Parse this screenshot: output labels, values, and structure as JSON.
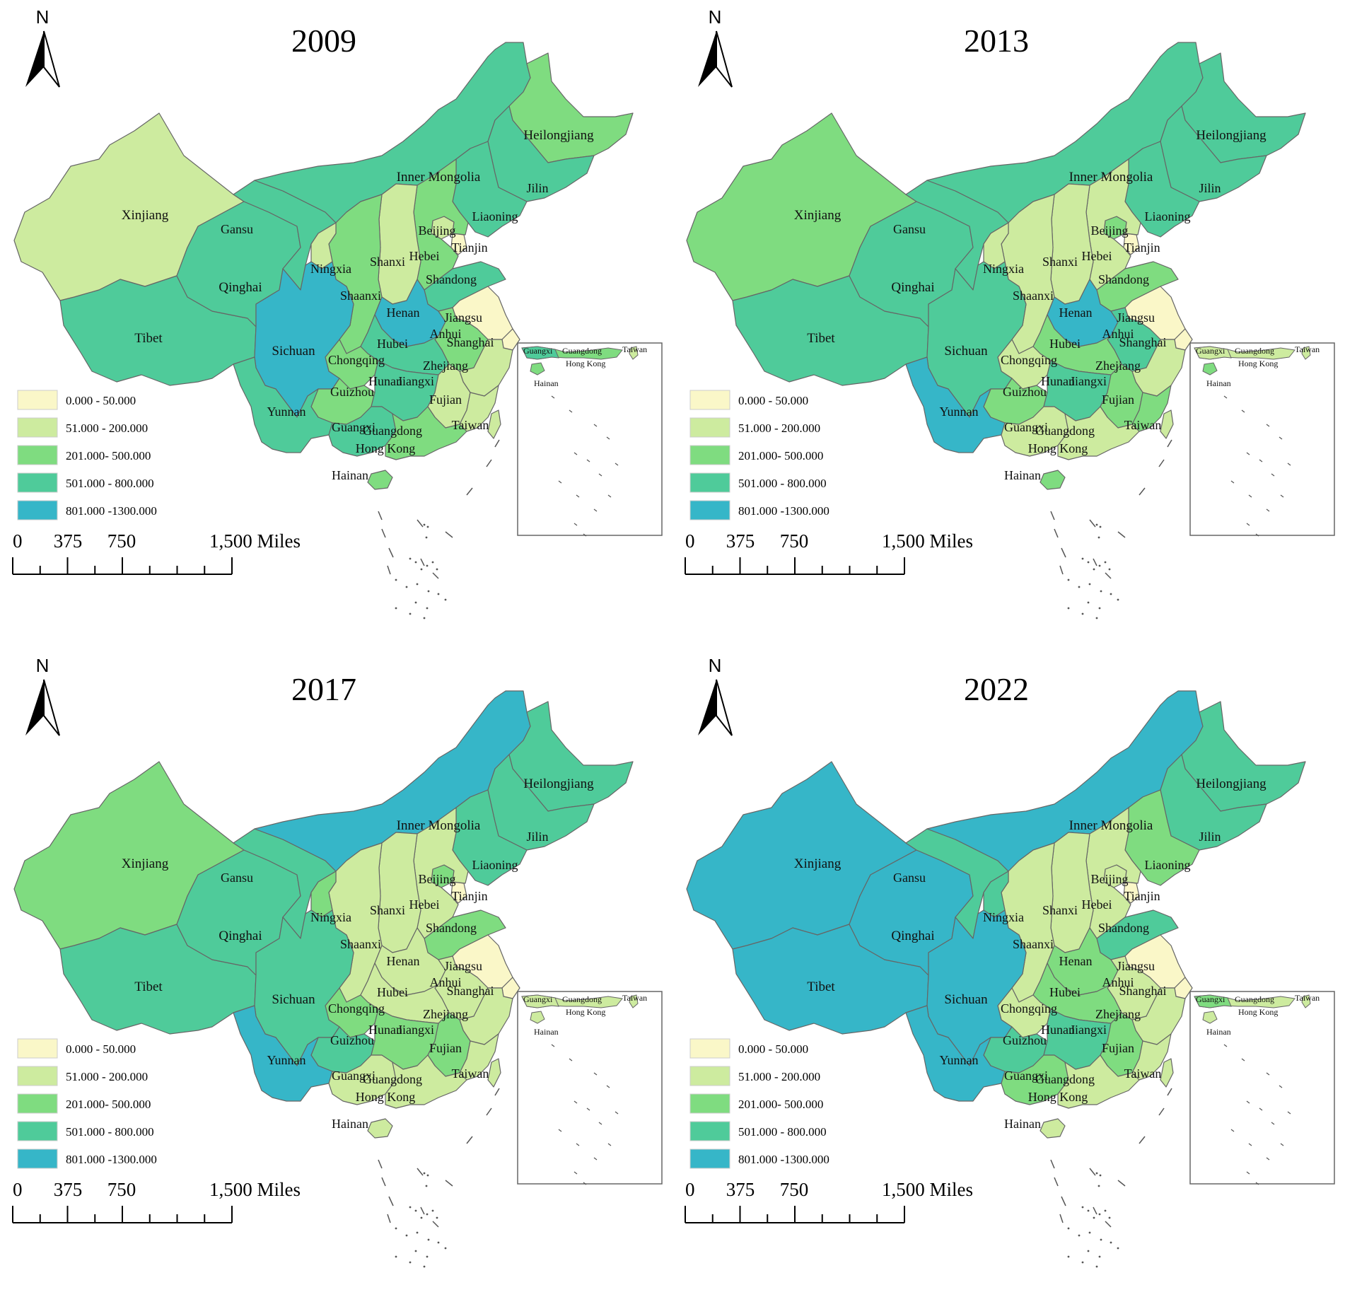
{
  "legend": [
    {
      "label": "0.000 - 50.000",
      "color": "#FAF7C8"
    },
    {
      "label": "51.000 - 200.000",
      "color": "#CDEB9F"
    },
    {
      "label": "201.000- 500.000",
      "color": "#7FDC80"
    },
    {
      "label": "501.000 - 800.000",
      "color": "#4FCB9A"
    },
    {
      "label": "801.000 -1300.000",
      "color": "#36B6C8"
    }
  ],
  "north_label": "N",
  "scale": {
    "zero": "0",
    "a": "375",
    "b": "750",
    "end": "1,500 Miles"
  },
  "inset_labels": {
    "guangxi": "Guangxi",
    "guangdong": "Guangdong",
    "hongkong": "Hong Kong",
    "hainan": "Hainan",
    "taiwan": "Taiwan"
  },
  "provinces": {
    "xinjiang": "Xinjiang",
    "gansu": "Gansu",
    "qinghai": "Qinghai",
    "tibet": "Tibet",
    "sichuan": "Sichuan",
    "yunnan": "Yunnan",
    "guizhou": "Guizhou",
    "chongqing": "Chongqing",
    "ningxia": "Ningxia",
    "shaanxi": "Shaanxi",
    "shanxi": "Shanxi",
    "inner_mongolia": "Inner Mongolia",
    "heilongjiang": "Heilongjiang",
    "jilin": "Jilin",
    "liaoning": "Liaoning",
    "beijing": "Beijing",
    "tianjin": "Tianjin",
    "hebei": "Hebei",
    "shandong": "Shandong",
    "henan": "Henan",
    "hubei": "Hubei",
    "hunan": "Hunan",
    "anhui": "Anhui",
    "jiangsu": "Jiangsu",
    "shanghai": "Shanghai",
    "zhejiang": "Zhejiang",
    "jiangxi": "Jiangxi",
    "fujian": "Fujian",
    "guangxi": "Guangxi",
    "guangdong": "Guangdong",
    "hongkong": "Hong Kong",
    "hainan": "Hainan",
    "taiwan": "Taiwan"
  },
  "maps": [
    {
      "year": "2009",
      "classes": {
        "xinjiang": 1,
        "gansu": 3,
        "qinghai": 3,
        "tibet": 3,
        "sichuan": 4,
        "yunnan": 3,
        "guizhou": 2,
        "chongqing": 2,
        "ningxia": 1,
        "shaanxi": 2,
        "shanxi": 1,
        "inner_mongolia": 3,
        "heilongjiang": 2,
        "jilin": 3,
        "liaoning": 3,
        "beijing": 1,
        "tianjin": 0,
        "hebei": 2,
        "shandong": 3,
        "henan": 4,
        "hubei": 3,
        "hunan": 3,
        "anhui": 2,
        "jiangsu": 0,
        "shanghai": 0,
        "zhejiang": 1,
        "jiangxi": 1,
        "fujian": 1,
        "guangxi": 3,
        "guangdong": 2,
        "hainan": 2,
        "taiwan": 1
      }
    },
    {
      "year": "2013",
      "classes": {
        "xinjiang": 2,
        "gansu": 3,
        "qinghai": 3,
        "tibet": 3,
        "sichuan": 3,
        "yunnan": 4,
        "guizhou": 2,
        "chongqing": 1,
        "ningxia": 1,
        "shaanxi": 1,
        "shanxi": 1,
        "inner_mongolia": 3,
        "heilongjiang": 3,
        "jilin": 3,
        "liaoning": 3,
        "beijing": 2,
        "tianjin": 0,
        "hebei": 1,
        "shandong": 2,
        "henan": 4,
        "hubei": 2,
        "hunan": 3,
        "anhui": 3,
        "jiangsu": 0,
        "shanghai": 0,
        "zhejiang": 1,
        "jiangxi": 2,
        "fujian": 2,
        "guangxi": 1,
        "guangdong": 1,
        "hainan": 2,
        "taiwan": 1
      }
    },
    {
      "year": "2017",
      "classes": {
        "xinjiang": 2,
        "gansu": 3,
        "qinghai": 3,
        "tibet": 3,
        "sichuan": 3,
        "yunnan": 4,
        "guizhou": 3,
        "chongqing": 2,
        "ningxia": 2,
        "shaanxi": 1,
        "shanxi": 1,
        "inner_mongolia": 4,
        "heilongjiang": 3,
        "jilin": 3,
        "liaoning": 3,
        "beijing": 2,
        "tianjin": 0,
        "hebei": 1,
        "shandong": 2,
        "henan": 1,
        "hubei": 1,
        "hunan": 2,
        "anhui": 1,
        "jiangsu": 0,
        "shanghai": 0,
        "zhejiang": 1,
        "jiangxi": 2,
        "fujian": 1,
        "guangxi": 1,
        "guangdong": 1,
        "hainan": 1,
        "taiwan": 1
      }
    },
    {
      "year": "2022",
      "classes": {
        "xinjiang": 4,
        "gansu": 3,
        "qinghai": 4,
        "tibet": 4,
        "sichuan": 4,
        "yunnan": 4,
        "guizhou": 3,
        "chongqing": 1,
        "ningxia": 3,
        "shaanxi": 1,
        "shanxi": 1,
        "inner_mongolia": 4,
        "heilongjiang": 3,
        "jilin": 3,
        "liaoning": 2,
        "beijing": 1,
        "tianjin": 0,
        "hebei": 1,
        "shandong": 3,
        "henan": 2,
        "hubei": 2,
        "hunan": 3,
        "anhui": 1,
        "jiangsu": 0,
        "shanghai": 0,
        "zhejiang": 1,
        "jiangxi": 2,
        "fujian": 1,
        "guangxi": 2,
        "guangdong": 1,
        "hainan": 1,
        "taiwan": 1
      }
    }
  ]
}
